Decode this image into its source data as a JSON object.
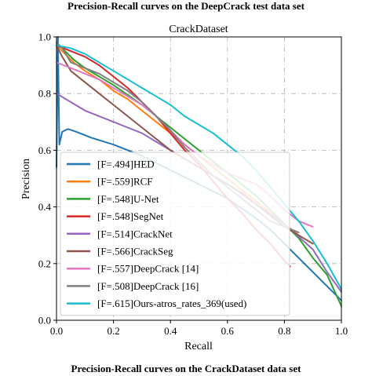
{
  "captions": {
    "top": "Precision-Recall curves on the DeepCrack test data set",
    "bottom": "Precision-Recall curves on the CrackDataset data set"
  },
  "chart_data": {
    "type": "line",
    "title": "CrackDataset",
    "xlabel": "Recall",
    "ylabel": "Precision",
    "xlim": [
      0.0,
      1.0
    ],
    "ylim": [
      0.0,
      1.0
    ],
    "xticks": [
      "0.0",
      "0.2",
      "0.4",
      "0.6",
      "0.8",
      "1.0"
    ],
    "yticks": [
      "0.0",
      "0.2",
      "0.4",
      "0.6",
      "0.8",
      "1.0"
    ],
    "grid": true,
    "grid_style": "dash-dot",
    "legend_position": "lower-left",
    "series": [
      {
        "name": "[F=.494]HED",
        "color": "#1f77b4",
        "x": [
          0.0,
          0.005,
          0.01,
          0.02,
          0.04,
          0.07,
          0.12,
          0.2,
          0.3,
          0.4,
          0.5,
          0.6,
          0.7,
          0.75,
          0.8,
          0.85,
          0.9,
          0.95,
          1.0
        ],
        "y": [
          0.54,
          1.0,
          0.62,
          0.665,
          0.675,
          0.665,
          0.645,
          0.62,
          0.58,
          0.53,
          0.48,
          0.43,
          0.36,
          0.32,
          0.27,
          0.22,
          0.17,
          0.12,
          0.07
        ]
      },
      {
        "name": "[F=.559]RCF",
        "color": "#ff7f0e",
        "x": [
          0.0,
          0.03,
          0.06,
          0.1,
          0.15,
          0.2,
          0.25,
          0.3,
          0.35,
          0.4,
          0.45,
          0.5,
          0.55,
          0.6,
          0.65,
          0.7,
          0.75,
          0.8,
          0.85
        ],
        "y": [
          0.97,
          0.94,
          0.91,
          0.88,
          0.85,
          0.81,
          0.78,
          0.74,
          0.7,
          0.66,
          0.62,
          0.58,
          0.54,
          0.5,
          0.46,
          0.42,
          0.38,
          0.34,
          0.3
        ]
      },
      {
        "name": "[F=.548]U-Net",
        "color": "#2ca02c",
        "x": [
          0.0,
          0.03,
          0.06,
          0.1,
          0.15,
          0.2,
          0.3,
          0.4,
          0.5,
          0.6,
          0.7,
          0.8,
          0.85,
          0.9,
          0.95,
          1.0
        ],
        "y": [
          0.98,
          0.95,
          0.92,
          0.89,
          0.86,
          0.83,
          0.76,
          0.68,
          0.6,
          0.52,
          0.44,
          0.34,
          0.29,
          0.22,
          0.16,
          0.05
        ]
      },
      {
        "name": "[F=.548]SegNet",
        "color": "#d62728",
        "x": [
          0.0,
          0.05,
          0.1,
          0.15,
          0.2,
          0.25,
          0.3,
          0.35,
          0.4,
          0.45,
          0.5,
          0.55,
          0.6,
          0.65,
          0.7,
          0.75,
          0.8,
          0.82
        ],
        "y": [
          0.97,
          0.95,
          0.93,
          0.9,
          0.86,
          0.82,
          0.77,
          0.72,
          0.66,
          0.6,
          0.55,
          0.49,
          0.43,
          0.38,
          0.32,
          0.27,
          0.21,
          0.19
        ]
      },
      {
        "name": "[F=.514]CrackNet",
        "color": "#9467bd",
        "x": [
          0.0,
          0.05,
          0.1,
          0.15,
          0.2,
          0.25,
          0.3,
          0.35,
          0.4,
          0.45,
          0.5,
          0.6,
          0.7,
          0.8,
          0.9,
          0.95,
          1.0
        ],
        "y": [
          0.8,
          0.77,
          0.74,
          0.72,
          0.7,
          0.68,
          0.66,
          0.63,
          0.6,
          0.57,
          0.54,
          0.48,
          0.41,
          0.34,
          0.25,
          0.17,
          0.1
        ]
      },
      {
        "name": "[F=.566]CrackSeg",
        "color": "#8c564b",
        "x": [
          0.0,
          0.02,
          0.05,
          0.1,
          0.15,
          0.2,
          0.25,
          0.3,
          0.35,
          0.4,
          0.45,
          0.5,
          0.55,
          0.6,
          0.65,
          0.7,
          0.75,
          0.8,
          0.85,
          0.9
        ],
        "y": [
          0.97,
          0.93,
          0.88,
          0.84,
          0.8,
          0.76,
          0.72,
          0.68,
          0.64,
          0.6,
          0.57,
          0.54,
          0.51,
          0.48,
          0.45,
          0.41,
          0.37,
          0.33,
          0.3,
          0.27
        ]
      },
      {
        "name": "[F=.557]DeepCrack [14]",
        "color": "#e377c2",
        "x": [
          0.0,
          0.05,
          0.1,
          0.15,
          0.2,
          0.25,
          0.3,
          0.35,
          0.4,
          0.45,
          0.5,
          0.55,
          0.6,
          0.65,
          0.7,
          0.75,
          0.8,
          0.85,
          0.9
        ],
        "y": [
          0.91,
          0.89,
          0.87,
          0.85,
          0.82,
          0.79,
          0.76,
          0.72,
          0.67,
          0.62,
          0.58,
          0.55,
          0.52,
          0.5,
          0.48,
          0.44,
          0.39,
          0.35,
          0.33
        ]
      },
      {
        "name": "[F=.508]DeepCrack [16]",
        "color": "#7f7f7f",
        "x": [
          0.0,
          0.02,
          0.05,
          0.1,
          0.15,
          0.2,
          0.25,
          0.3,
          0.35,
          0.4,
          0.45,
          0.5,
          0.55,
          0.6,
          0.65,
          0.7,
          0.75,
          0.8,
          0.85
        ],
        "y": [
          0.98,
          0.96,
          0.91,
          0.89,
          0.87,
          0.84,
          0.81,
          0.77,
          0.72,
          0.67,
          0.61,
          0.56,
          0.51,
          0.47,
          0.43,
          0.39,
          0.35,
          0.33,
          0.31
        ]
      },
      {
        "name": "[F=.615]Ours-atros_rates_369(used)",
        "color": "#17becf",
        "x": [
          0.0,
          0.05,
          0.1,
          0.15,
          0.2,
          0.25,
          0.3,
          0.35,
          0.4,
          0.45,
          0.5,
          0.55,
          0.6,
          0.65,
          0.7,
          0.75,
          0.8,
          0.85,
          0.9,
          0.95,
          1.0
        ],
        "y": [
          0.97,
          0.96,
          0.94,
          0.91,
          0.88,
          0.85,
          0.82,
          0.79,
          0.76,
          0.72,
          0.69,
          0.66,
          0.62,
          0.58,
          0.53,
          0.47,
          0.41,
          0.35,
          0.28,
          0.2,
          0.11
        ]
      }
    ]
  }
}
